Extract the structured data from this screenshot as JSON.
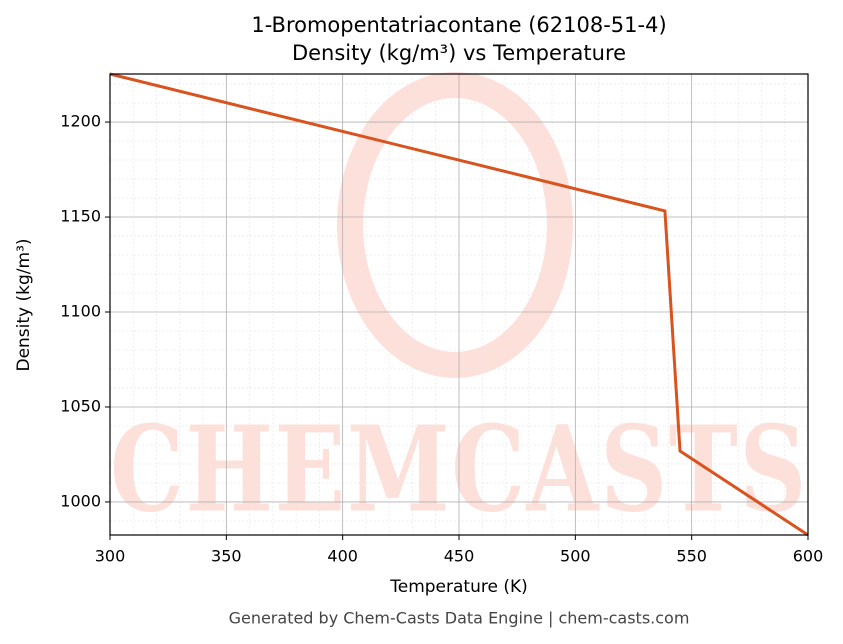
{
  "chart_data": {
    "type": "line",
    "title": "1-Bromopentatriacontane (62108-51-4)",
    "subtitle": "Density (kg/m³) vs Temperature",
    "x_label": "Temperature (K)",
    "y_label": "Density (kg/m³)",
    "footer": "Generated by Chem-Casts Data Engine | chem-casts.com",
    "watermark": "CHEMCASTS",
    "x": [
      300,
      538.5,
      545,
      600
    ],
    "series": [
      {
        "name": "Density",
        "color": "#d9531e",
        "values": [
          1225.3,
          1153.2,
          1026.8,
          982.6
        ]
      }
    ],
    "xlim": [
      300,
      600
    ],
    "ylim": [
      982.6,
      1225.3
    ],
    "xticks": [
      300,
      350,
      400,
      450,
      500,
      550,
      600
    ],
    "yticks": [
      1000,
      1050,
      1100,
      1150,
      1200
    ],
    "grid": true,
    "minor_grid": true
  }
}
